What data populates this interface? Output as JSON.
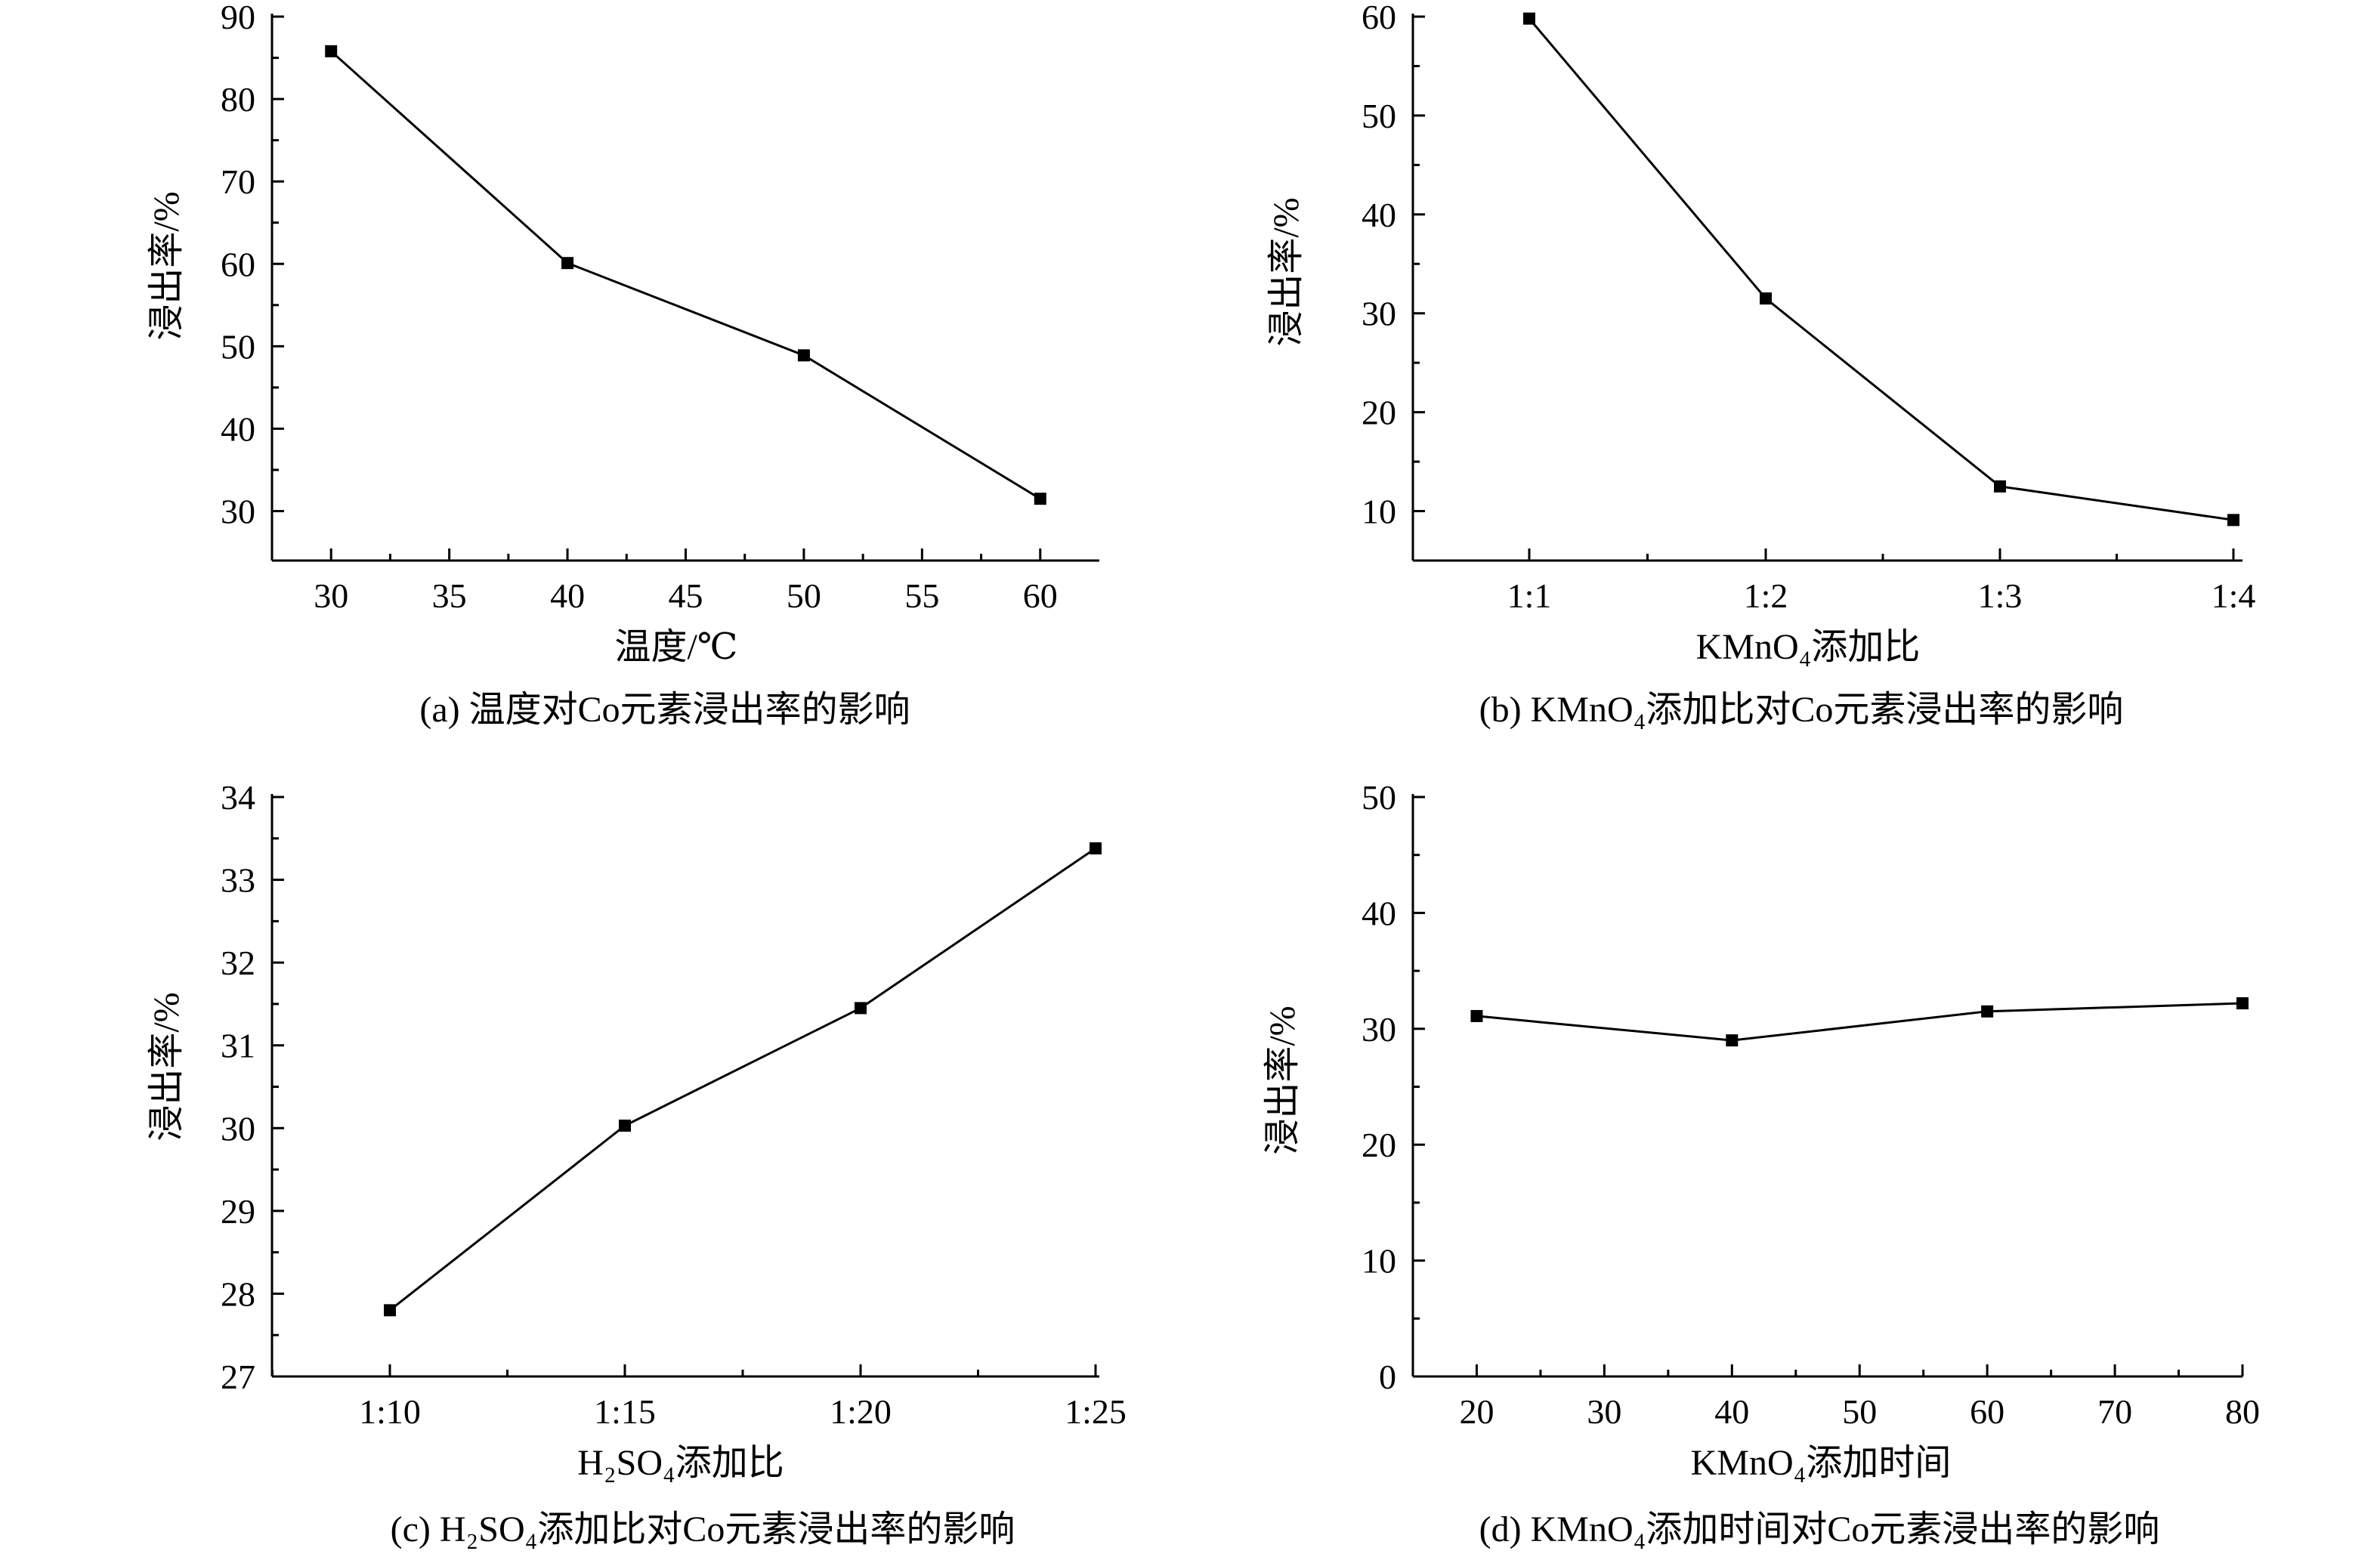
{
  "chart_data": [
    {
      "type": "line",
      "x_kind": "numeric",
      "x": [
        30,
        40,
        50,
        60
      ],
      "y": [
        85.8,
        60.1,
        48.9,
        31.5
      ],
      "xlim": [
        27.5,
        62.5
      ],
      "ylim": [
        24,
        90
      ],
      "xticks": [
        "30",
        "35",
        "40",
        "45",
        "50",
        "55",
        "60"
      ],
      "yticks": [
        "30",
        "40",
        "50",
        "60",
        "70",
        "80",
        "90"
      ],
      "xlabel": "温度/℃",
      "ylabel": "浸出率/%",
      "caption": "(a) 温度对Co元素浸出率的影响",
      "grid": false,
      "marker": "square"
    },
    {
      "type": "line",
      "x_kind": "categorical",
      "categories": [
        "1:1",
        "1:2",
        "1:3",
        "1:4"
      ],
      "y": [
        59.8,
        31.5,
        12.5,
        9.1
      ],
      "ylim": [
        5,
        60
      ],
      "yticks": [
        "10",
        "20",
        "30",
        "40",
        "50",
        "60"
      ],
      "xlabel": "KMnO₄添加比",
      "ylabel": "浸出率/%",
      "caption": "(b) KMnO₄添加比对Co元素浸出率的影响",
      "grid": false,
      "marker": "square"
    },
    {
      "type": "line",
      "x_kind": "categorical",
      "categories": [
        "1:10",
        "1:15",
        "1:20",
        "1:25"
      ],
      "y": [
        27.8,
        30.03,
        31.45,
        33.38
      ],
      "ylim": [
        27,
        34
      ],
      "yticks": [
        "27",
        "28",
        "29",
        "30",
        "31",
        "32",
        "33",
        "34"
      ],
      "xlabel": "H₂SO₄添加比",
      "ylabel": "浸出率/%",
      "caption": "(c) H₂SO₄添加比对Co元素浸出率的影响",
      "grid": false,
      "marker": "square"
    },
    {
      "type": "line",
      "x_kind": "numeric",
      "x": [
        20,
        40,
        60,
        80
      ],
      "y": [
        31.1,
        29.0,
        31.5,
        32.2
      ],
      "xlim": [
        15,
        80
      ],
      "ylim": [
        0,
        50
      ],
      "xticks": [
        "20",
        "30",
        "40",
        "50",
        "60",
        "70",
        "80"
      ],
      "yticks": [
        "0",
        "10",
        "20",
        "30",
        "40",
        "50"
      ],
      "xlabel": "KMnO₄添加时间",
      "ylabel": "浸出率/%",
      "caption": "(d) KMnO₄添加时间对Co元素浸出率的影响",
      "grid": false,
      "marker": "square"
    }
  ]
}
